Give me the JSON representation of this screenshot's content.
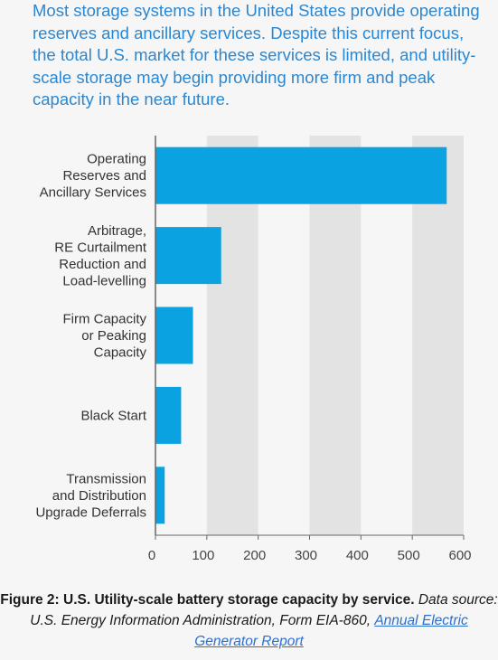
{
  "intro_text": "Most storage systems in the United States provide operating reserves and ancillary services. Despite this current focus, the total U.S. market for these services is limited, and utility-scale storage may begin providing more firm and peak capacity in the near future.",
  "chart_data": {
    "type": "bar",
    "orientation": "horizontal",
    "categories": [
      [
        "Operating",
        "Reserves and",
        "Ancillary Services"
      ],
      [
        "Arbitrage,",
        "RE Curtailment",
        "Reduction and",
        "Load-levelling"
      ],
      [
        "Firm Capacity",
        "or Peaking",
        "Capacity"
      ],
      [
        "Black Start"
      ],
      [
        "Transmission",
        "and Distribution",
        "Upgrade Deferrals"
      ]
    ],
    "values": [
      567,
      128,
      73,
      50,
      18
    ],
    "xlim": [
      0,
      600
    ],
    "xticks": [
      0,
      100,
      200,
      300,
      400,
      500,
      600
    ],
    "title": "",
    "xlabel": "",
    "ylabel": "",
    "grid": "alternating vertical bands",
    "colors": {
      "bar": "#0aa2e0",
      "band": "#e3e3e3",
      "axis": "#666666",
      "label": "#333333"
    }
  },
  "caption": {
    "bold": "Figure 2: U.S. Utility-scale battery storage capacity by service.",
    "italic": "Data source: U.S. Energy Information Administration, Form EIA-860,",
    "link": "Annual Electric Generator Report"
  }
}
